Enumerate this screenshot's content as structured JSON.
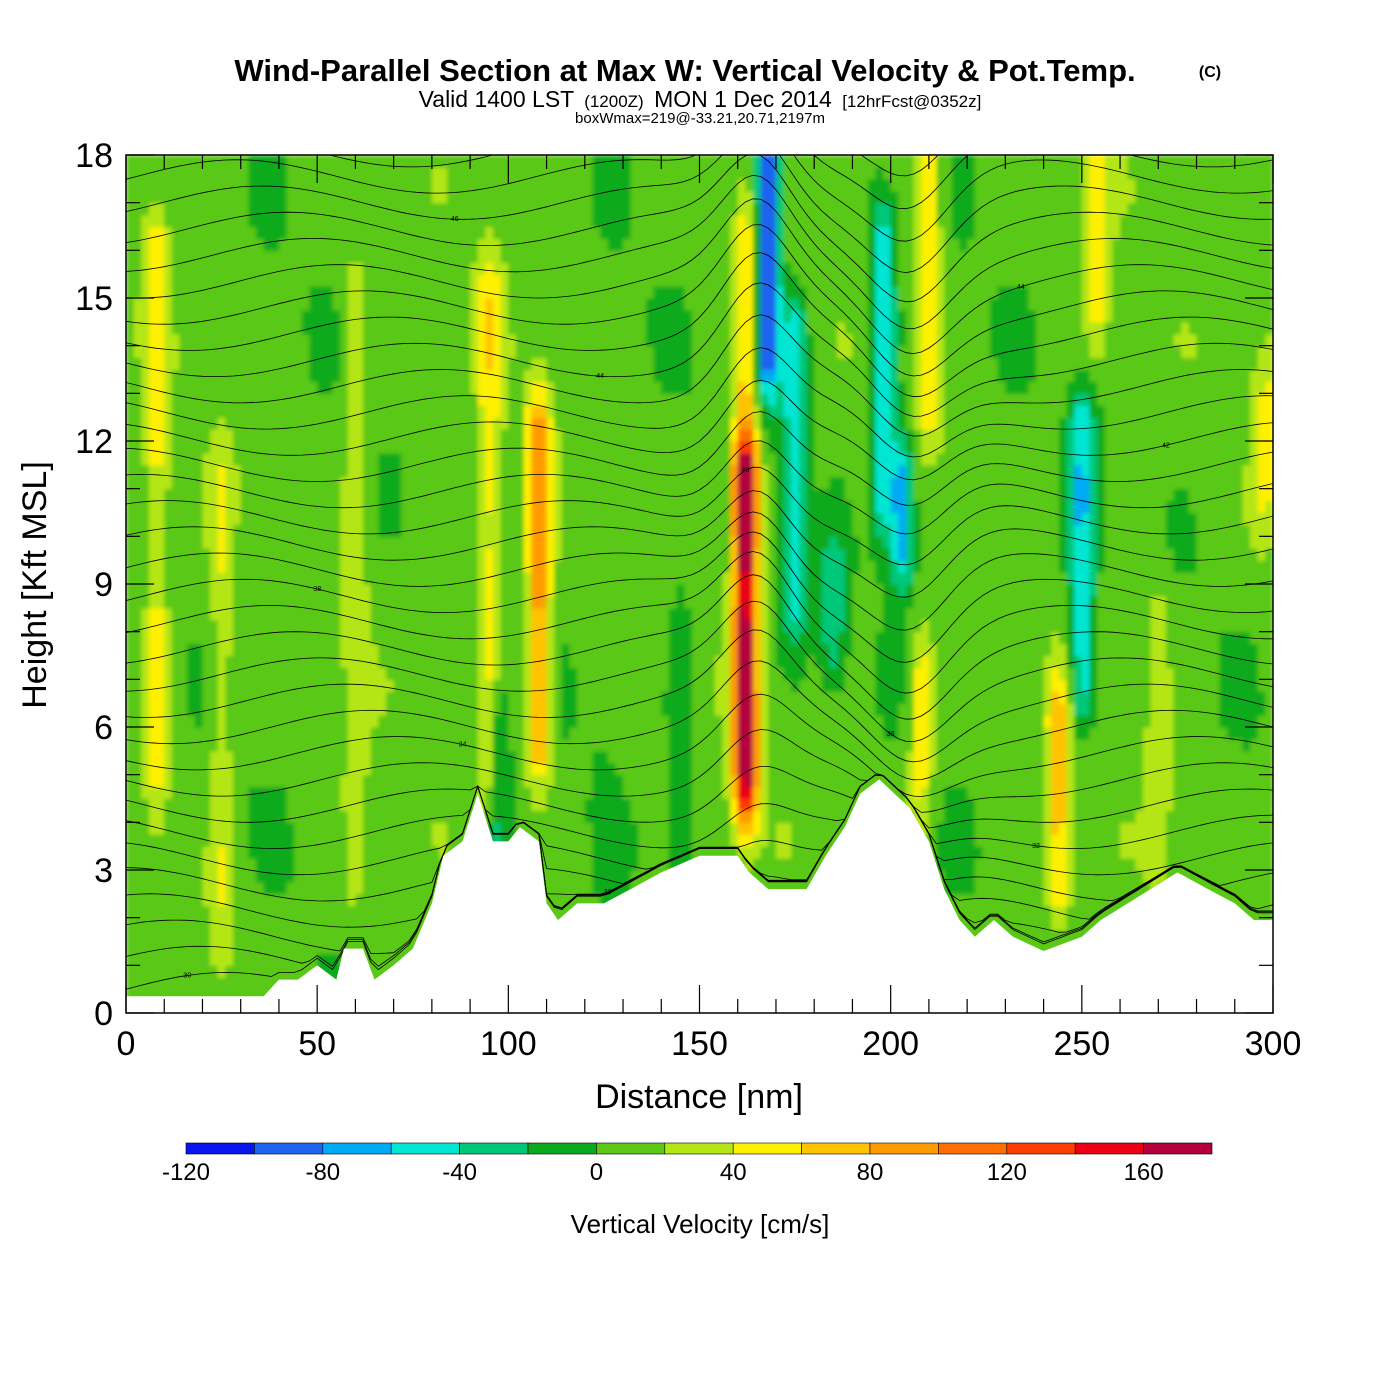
{
  "title": {
    "main": "Wind-Parallel Section at Max W: Vertical Velocity & Pot.Temp.",
    "copyright": "(C)",
    "valid_prefix": "Valid 1400 LST",
    "valid_utc": "(1200Z)",
    "valid_date": "MON 1 Dec 2014",
    "forecast": "[12hrFcst@0352z]",
    "boxwmax": "boxWmax=219@-33.21,20.71,2197m"
  },
  "chart_data": {
    "type": "heatmap",
    "xlabel": "Distance [nm]",
    "ylabel": "Height [Kft MSL]",
    "xlim": [
      0,
      300
    ],
    "ylim": [
      0,
      18
    ],
    "x_ticks": [
      "0",
      "50",
      "100",
      "150",
      "200",
      "250",
      "300"
    ],
    "y_ticks": [
      "0",
      "3",
      "6",
      "9",
      "12",
      "15",
      "18"
    ],
    "colorbar": {
      "label": "Vertical Velocity [cm/s]",
      "levels": [
        -120,
        -100,
        -80,
        -60,
        -40,
        -20,
        0,
        20,
        40,
        60,
        80,
        100,
        120,
        140,
        160,
        180
      ],
      "tick_labels": [
        "-120",
        "-80",
        "-40",
        "0",
        "40",
        "80",
        "120",
        "160"
      ],
      "colors": [
        "#0a14f0",
        "#1e64f0",
        "#00aaf5",
        "#00e6d2",
        "#00c878",
        "#0aaa1e",
        "#5ac814",
        "#b4e614",
        "#fff000",
        "#ffc300",
        "#ff9b00",
        "#ff6e00",
        "#ff3c00",
        "#eb0014",
        "#b4003c"
      ]
    },
    "terrain": [
      [
        0,
        0.35
      ],
      [
        10,
        0.35
      ],
      [
        20,
        0.35
      ],
      [
        30,
        0.35
      ],
      [
        36,
        0.35
      ],
      [
        40,
        0.7
      ],
      [
        45,
        0.7
      ],
      [
        50,
        1.0
      ],
      [
        55,
        0.7
      ],
      [
        57,
        1.35
      ],
      [
        62,
        1.35
      ],
      [
        65,
        0.7
      ],
      [
        70,
        1.0
      ],
      [
        75,
        1.35
      ],
      [
        80,
        2.3
      ],
      [
        83,
        3.3
      ],
      [
        88,
        3.6
      ],
      [
        92,
        4.6
      ],
      [
        96,
        3.6
      ],
      [
        100,
        3.6
      ],
      [
        103,
        3.9
      ],
      [
        108,
        3.6
      ],
      [
        110,
        2.3
      ],
      [
        113,
        1.95
      ],
      [
        118,
        2.3
      ],
      [
        125,
        2.3
      ],
      [
        132,
        2.6
      ],
      [
        140,
        2.95
      ],
      [
        150,
        3.3
      ],
      [
        160,
        3.3
      ],
      [
        163,
        2.95
      ],
      [
        168,
        2.6
      ],
      [
        178,
        2.6
      ],
      [
        183,
        3.3
      ],
      [
        188,
        3.9
      ],
      [
        192,
        4.6
      ],
      [
        197,
        4.9
      ],
      [
        201,
        4.6
      ],
      [
        205,
        4.3
      ],
      [
        210,
        3.6
      ],
      [
        214,
        2.6
      ],
      [
        218,
        1.95
      ],
      [
        222,
        1.6
      ],
      [
        227,
        1.95
      ],
      [
        232,
        1.6
      ],
      [
        240,
        1.3
      ],
      [
        250,
        1.6
      ],
      [
        255,
        1.95
      ],
      [
        262,
        2.3
      ],
      [
        268,
        2.6
      ],
      [
        275,
        2.95
      ],
      [
        283,
        2.6
      ],
      [
        290,
        2.3
      ],
      [
        295,
        1.95
      ],
      [
        300,
        1.95
      ]
    ],
    "w_features": [
      {
        "x": 8,
        "y0": 5,
        "y1": 16,
        "w": 40
      },
      {
        "x": 25,
        "y0": 2,
        "y1": 11,
        "w": 28
      },
      {
        "x": 60,
        "y0": 3,
        "y1": 15,
        "w": 24
      },
      {
        "x": 95,
        "y0": 5,
        "y1": 15,
        "w": 42
      },
      {
        "x": 97,
        "y0": 4,
        "y1": 6,
        "w": -42
      },
      {
        "x": 108,
        "y0": 6,
        "y1": 12,
        "w": 85
      },
      {
        "x": 125,
        "y0": 3,
        "y1": 9,
        "w": -5
      },
      {
        "x": 145,
        "y0": 4,
        "y1": 8,
        "w": -25
      },
      {
        "x": 162,
        "y0": 5,
        "y1": 11,
        "w": 165
      },
      {
        "x": 162,
        "y0": 11,
        "y1": 16,
        "w": 55
      },
      {
        "x": 168,
        "y0": 14,
        "y1": 18,
        "w": -110
      },
      {
        "x": 175,
        "y0": 9,
        "y1": 14,
        "w": -62
      },
      {
        "x": 185,
        "y0": 8,
        "y1": 9,
        "w": -40
      },
      {
        "x": 198,
        "y0": 11,
        "y1": 16,
        "w": -65
      },
      {
        "x": 203,
        "y0": 10,
        "y1": 11,
        "w": -80
      },
      {
        "x": 210,
        "y0": 13,
        "y1": 18,
        "w": 50
      },
      {
        "x": 208,
        "y0": 5,
        "y1": 7,
        "w": 45
      },
      {
        "x": 244,
        "y0": 3,
        "y1": 6,
        "w": 62
      },
      {
        "x": 250,
        "y0": 7,
        "y1": 12,
        "w": -65
      },
      {
        "x": 254,
        "y0": 15,
        "y1": 18,
        "w": 42
      },
      {
        "x": 270,
        "y0": 4,
        "y1": 8,
        "w": 28
      },
      {
        "x": 298,
        "y0": 11,
        "y1": 13,
        "w": 32
      }
    ],
    "contour_labels": [
      "30",
      "32",
      "34",
      "36",
      "38",
      "40",
      "42",
      "44",
      "46",
      "48"
    ]
  }
}
